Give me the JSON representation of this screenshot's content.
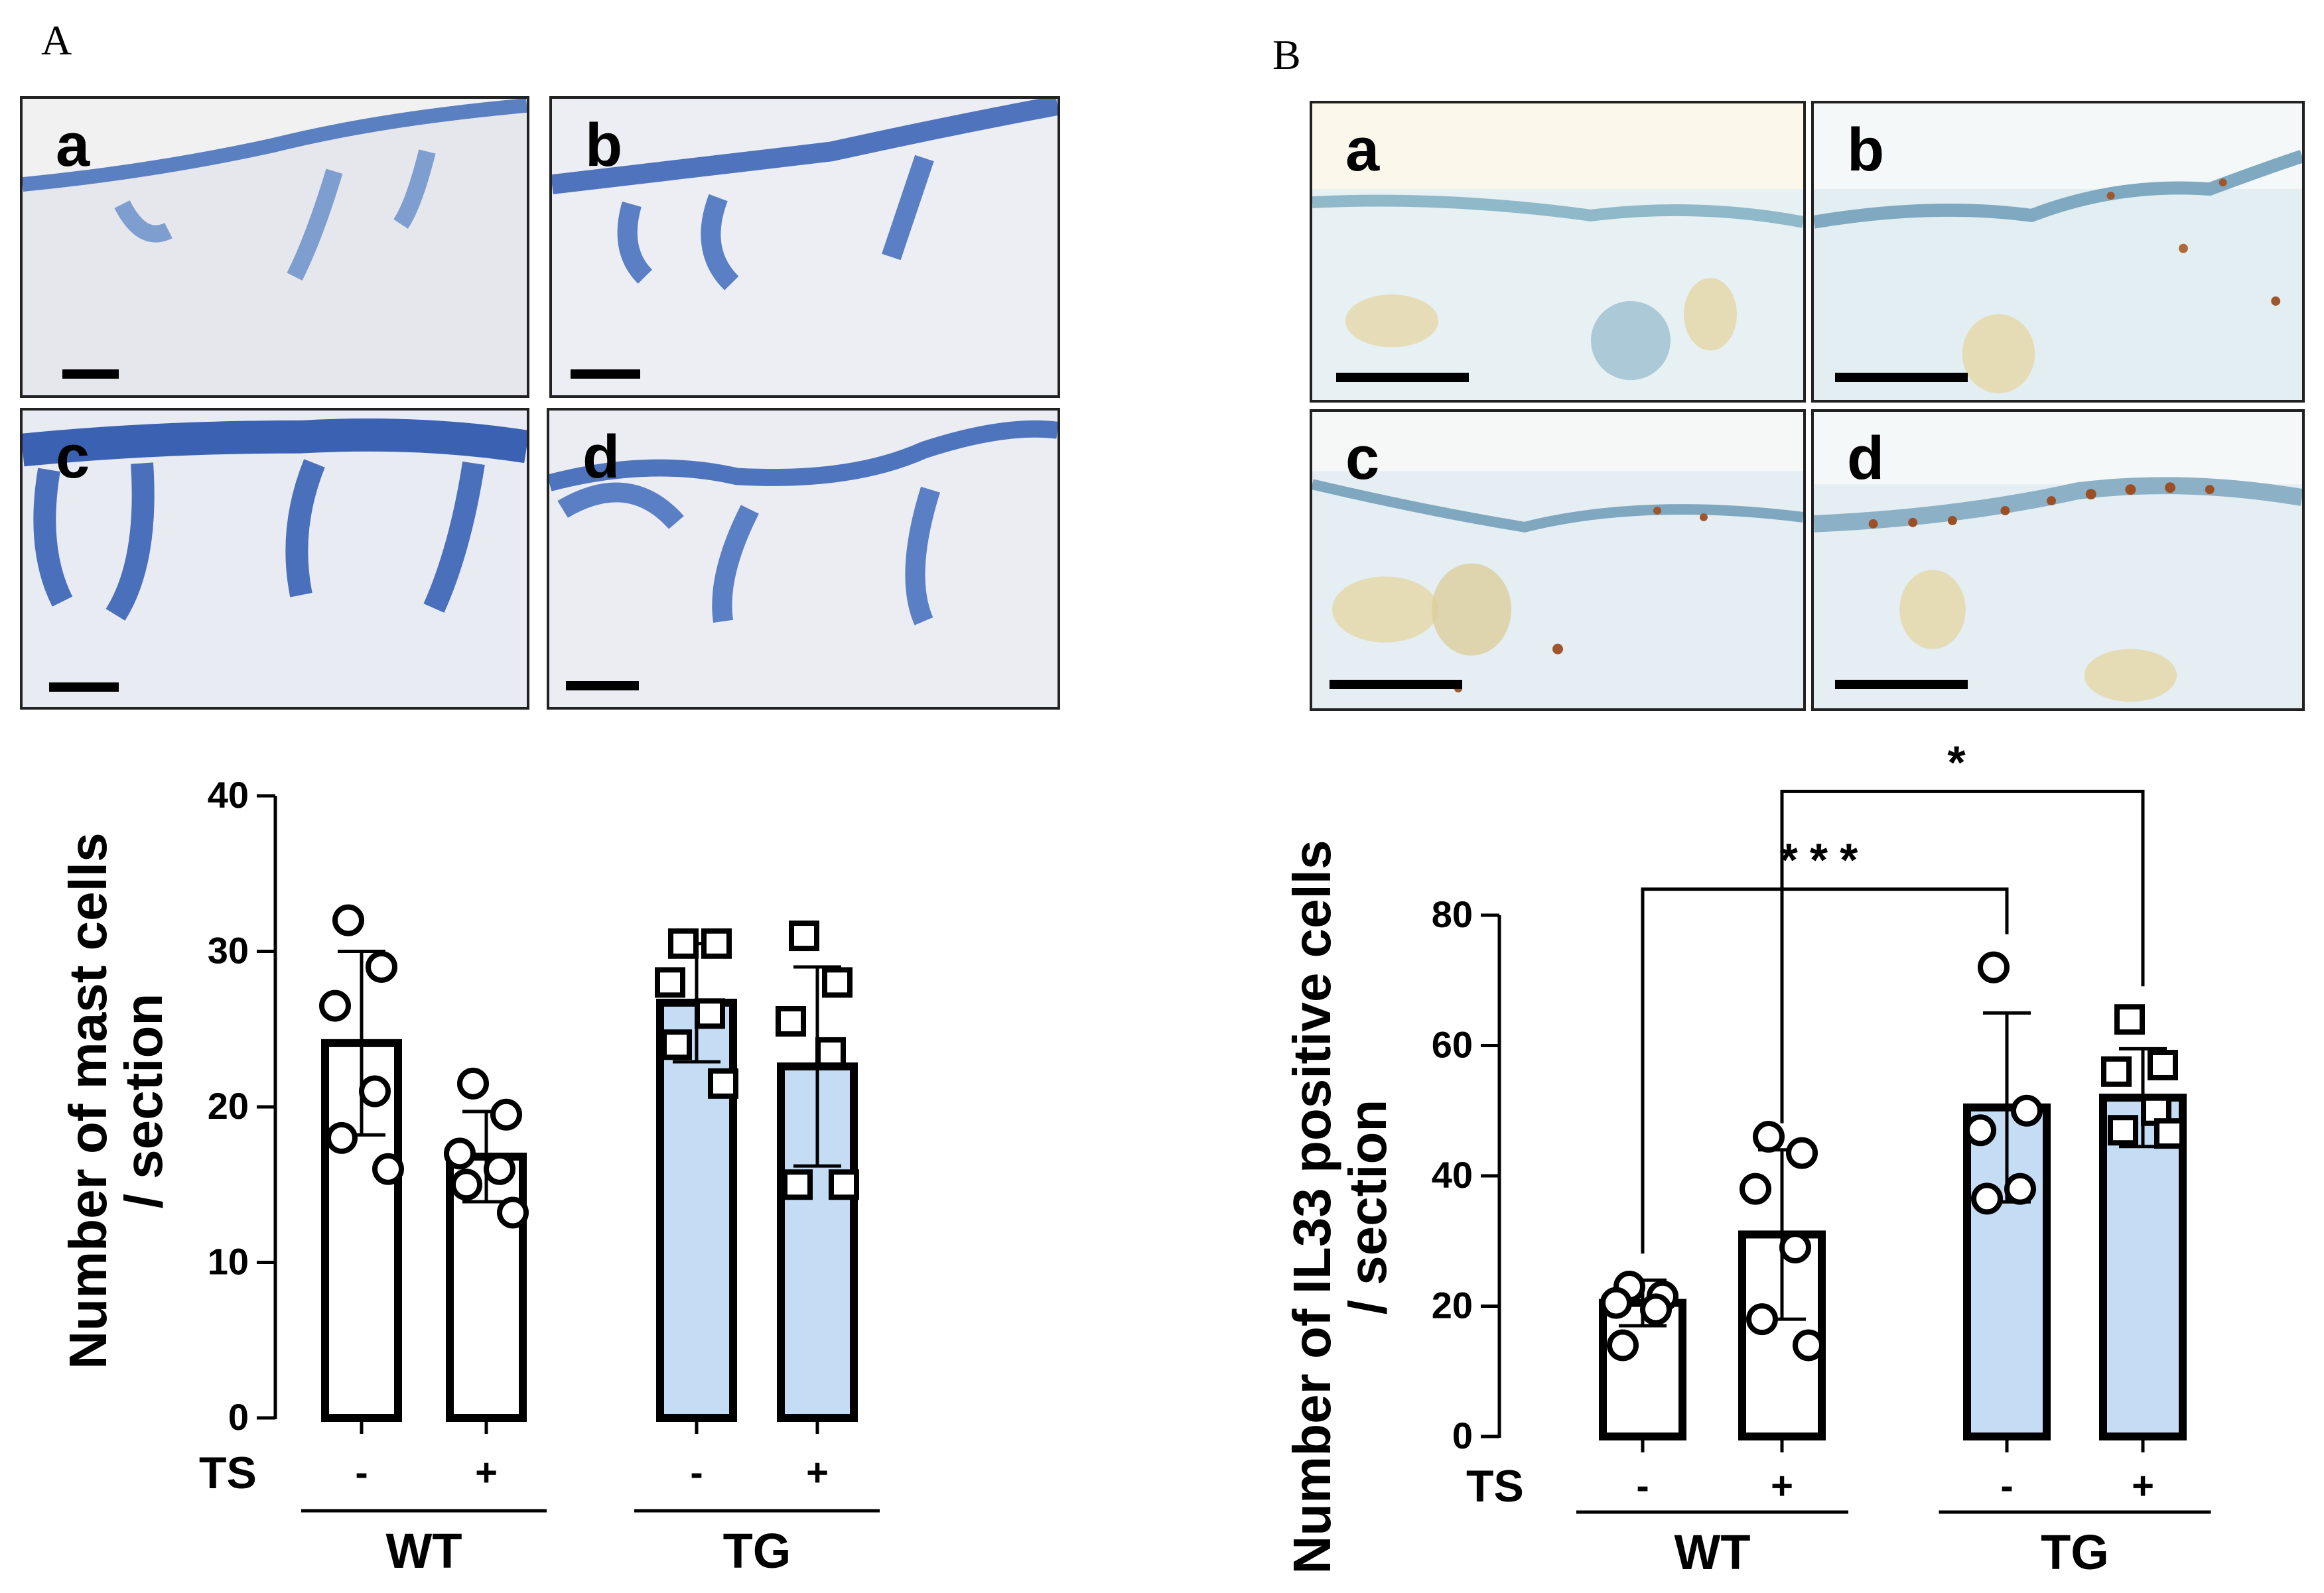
{
  "panels": {
    "A": {
      "letter": "A",
      "micrographs": [
        {
          "label": "a",
          "stain": "toluidine-blue"
        },
        {
          "label": "b",
          "stain": "toluidine-blue"
        },
        {
          "label": "c",
          "stain": "toluidine-blue"
        },
        {
          "label": "d",
          "stain": "toluidine-blue"
        }
      ]
    },
    "B": {
      "letter": "B",
      "micrographs": [
        {
          "label": "a",
          "stain": "IL33-immunohistochemistry"
        },
        {
          "label": "b",
          "stain": "IL33-immunohistochemistry"
        },
        {
          "label": "c",
          "stain": "IL33-immunohistochemistry"
        },
        {
          "label": "d",
          "stain": "IL33-immunohistochemistry"
        }
      ]
    }
  },
  "colors": {
    "wt_fill": "#ffffff",
    "tg_fill": "#c5dcf5",
    "bar_stroke": "#000000",
    "tissue_blue": "#3f64b0"
  },
  "chart_data": [
    {
      "type": "bar",
      "panel": "A",
      "ylabel": "Number of mast cells / section",
      "ylabel_lines": [
        "Number of mast cells",
        "/ section"
      ],
      "ylim": [
        0,
        40
      ],
      "yticks": [
        0,
        10,
        20,
        30,
        40
      ],
      "ts_label": "TS",
      "categories": [
        "-",
        "+",
        "-",
        "+"
      ],
      "groups": [
        {
          "name": "WT",
          "categories": [
            0,
            1
          ]
        },
        {
          "name": "TG",
          "categories": [
            2,
            3
          ]
        }
      ],
      "values": [
        24.1,
        16.8,
        26.7,
        22.6
      ],
      "sd": [
        5.9,
        2.9,
        3.8,
        6.4
      ],
      "markers": [
        "circle",
        "circle",
        "square",
        "square"
      ],
      "points": [
        [
          32,
          29,
          26.5,
          21,
          18,
          16
        ],
        [
          21.5,
          19.5,
          17,
          16,
          15,
          13.2
        ],
        [
          30.5,
          30.5,
          28,
          26,
          24,
          21.5
        ],
        [
          31,
          28,
          25.5,
          23.5,
          15,
          15
        ]
      ],
      "significance": []
    },
    {
      "type": "bar",
      "panel": "B",
      "ylabel": "Number of IL33 positive cells / section",
      "ylabel_lines": [
        "Number of IL33 positive cells",
        "/ section"
      ],
      "ylim": [
        0,
        80
      ],
      "yticks": [
        0,
        20,
        40,
        60,
        80
      ],
      "ts_label": "TS",
      "categories": [
        "-",
        "+",
        "-",
        "+"
      ],
      "groups": [
        {
          "name": "WT",
          "categories": [
            0,
            1
          ]
        },
        {
          "name": "TG",
          "categories": [
            2,
            3
          ]
        }
      ],
      "values": [
        20.5,
        31,
        50.5,
        52
      ],
      "sd": [
        3.5,
        13,
        14.5,
        7.5
      ],
      "markers": [
        "circle",
        "circle",
        "circle",
        "square"
      ],
      "points": [
        [
          23,
          21.5,
          20.5,
          19.5,
          14
        ],
        [
          46,
          43.5,
          38,
          29,
          18,
          14
        ],
        [
          72,
          50,
          47,
          38,
          36.5
        ],
        [
          64,
          57,
          56,
          50,
          47,
          46.5
        ]
      ],
      "significance": [
        {
          "from": 0,
          "to": 2,
          "label": "***",
          "y": 84
        },
        {
          "from": 1,
          "to": 3,
          "label": "*",
          "y": 99
        }
      ]
    }
  ]
}
